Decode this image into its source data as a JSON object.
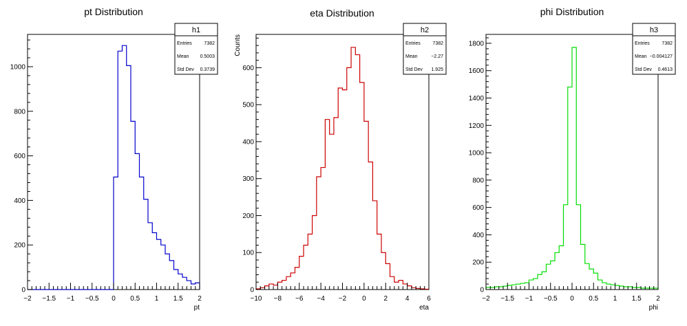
{
  "chart_data": [
    {
      "type": "histogram",
      "title": "pt Distribution",
      "xlabel": "pt",
      "ylabel": "",
      "xlim": [
        -2,
        2
      ],
      "ylim": [
        0,
        1145
      ],
      "color": "#0000cc",
      "xticks": [
        -2,
        -1.5,
        -1,
        -0.5,
        0,
        0.5,
        1,
        1.5,
        2
      ],
      "xtick_labels": [
        "−2",
        "−1.5",
        "−1",
        "−0.5",
        "0",
        "0.5",
        "1",
        "1.5",
        "2"
      ],
      "yticks": [
        0,
        200,
        400,
        600,
        800,
        1000
      ],
      "ytick_labels": [
        "0",
        "200",
        "400",
        "600",
        "800",
        "1000"
      ],
      "bin_edges": [
        -2,
        -1.9,
        -1.8,
        -1.7,
        -1.6,
        -1.5,
        -1.4,
        -1.3,
        -1.2,
        -1.1,
        -1,
        -0.9,
        -0.8,
        -0.7,
        -0.6,
        -0.5,
        -0.4,
        -0.3,
        -0.2,
        -0.1,
        0,
        0.1,
        0.2,
        0.3,
        0.4,
        0.5,
        0.6,
        0.7,
        0.8,
        0.9,
        1,
        1.1,
        1.2,
        1.3,
        1.4,
        1.5,
        1.6,
        1.7,
        1.8,
        1.9,
        2
      ],
      "counts": [
        0,
        0,
        0,
        0,
        0,
        0,
        0,
        0,
        0,
        0,
        0,
        0,
        0,
        0,
        0,
        0,
        0,
        0,
        0,
        0,
        505,
        1070,
        1095,
        1005,
        755,
        610,
        505,
        405,
        300,
        255,
        225,
        200,
        160,
        130,
        90,
        70,
        55,
        40,
        25,
        30
      ],
      "stats": {
        "name": "h1",
        "rows": [
          {
            "label": "Entries",
            "value": "7382"
          },
          {
            "label": "Mean",
            "value": "0.5003"
          },
          {
            "label": "Std Dev",
            "value": "0.3739"
          }
        ]
      }
    },
    {
      "type": "histogram",
      "title": "eta Distribution",
      "xlabel": "eta",
      "ylabel": "Counts",
      "xlim": [
        -10,
        6
      ],
      "ylim": [
        0,
        690
      ],
      "color": "#cc0000",
      "xticks": [
        -10,
        -8,
        -6,
        -4,
        -2,
        0,
        2,
        4,
        6
      ],
      "xtick_labels": [
        "−10",
        "−8",
        "−6",
        "−4",
        "−2",
        "0",
        "2",
        "4",
        "6"
      ],
      "yticks": [
        0,
        100,
        200,
        300,
        400,
        500,
        600
      ],
      "ytick_labels": [
        "0",
        "100",
        "200",
        "300",
        "400",
        "500",
        "600"
      ],
      "bin_edges": [
        -10,
        -9.6,
        -9.2,
        -8.8,
        -8.4,
        -8,
        -7.6,
        -7.2,
        -6.8,
        -6.4,
        -6,
        -5.6,
        -5.2,
        -4.8,
        -4.4,
        -4,
        -3.6,
        -3.2,
        -2.8,
        -2.4,
        -2,
        -1.6,
        -1.2,
        -0.8,
        -0.4,
        0,
        0.4,
        0.8,
        1.2,
        1.6,
        2,
        2.4,
        2.8,
        3.2,
        3.6,
        4,
        4.4,
        4.8,
        5.2,
        5.6,
        6
      ],
      "counts": [
        2,
        5,
        10,
        15,
        12,
        20,
        25,
        35,
        45,
        60,
        90,
        120,
        150,
        200,
        305,
        330,
        460,
        420,
        465,
        545,
        540,
        600,
        655,
        635,
        560,
        455,
        345,
        240,
        150,
        100,
        70,
        35,
        20,
        25,
        15,
        10,
        5,
        3,
        2,
        1
      ],
      "stats": {
        "name": "h2",
        "rows": [
          {
            "label": "Entries",
            "value": "7382"
          },
          {
            "label": "Mean",
            "value": "−2.27"
          },
          {
            "label": "Std Dev",
            "value": "1.925"
          }
        ]
      }
    },
    {
      "type": "histogram",
      "title": "phi Distribution",
      "xlabel": "phi",
      "ylabel": "",
      "xlim": [
        -2,
        2
      ],
      "ylim": [
        0,
        1865
      ],
      "color": "#00dd00",
      "xticks": [
        -2,
        -1.5,
        -1,
        -0.5,
        0,
        0.5,
        1,
        1.5,
        2
      ],
      "xtick_labels": [
        "−2",
        "−1.5",
        "−1",
        "−0.5",
        "0",
        "0.5",
        "1",
        "1.5",
        "2"
      ],
      "yticks": [
        0,
        200,
        400,
        600,
        800,
        1000,
        1200,
        1400,
        1600,
        1800
      ],
      "ytick_labels": [
        "0",
        "200",
        "400",
        "600",
        "800",
        "1000",
        "1200",
        "1400",
        "1600",
        "1800"
      ],
      "bin_edges": [
        -2,
        -1.9,
        -1.8,
        -1.7,
        -1.6,
        -1.5,
        -1.4,
        -1.3,
        -1.2,
        -1.1,
        -1,
        -0.9,
        -0.8,
        -0.7,
        -0.6,
        -0.5,
        -0.4,
        -0.3,
        -0.2,
        -0.1,
        0,
        0.1,
        0.2,
        0.3,
        0.4,
        0.5,
        0.6,
        0.7,
        0.8,
        0.9,
        1,
        1.1,
        1.2,
        1.3,
        1.4,
        1.5,
        1.6,
        1.7,
        1.8,
        1.9,
        2
      ],
      "counts": [
        15,
        15,
        20,
        20,
        25,
        30,
        35,
        40,
        45,
        50,
        70,
        80,
        110,
        130,
        185,
        210,
        270,
        320,
        620,
        1480,
        1770,
        620,
        330,
        190,
        150,
        120,
        70,
        50,
        40,
        35,
        30,
        25,
        20,
        20,
        15,
        15,
        10,
        10,
        10,
        10
      ],
      "stats": {
        "name": "h3",
        "rows": [
          {
            "label": "Entries",
            "value": "7382"
          },
          {
            "label": "Mean",
            "value": "−0.004127"
          },
          {
            "label": "Std Dev",
            "value": "0.4613"
          }
        ]
      }
    }
  ]
}
